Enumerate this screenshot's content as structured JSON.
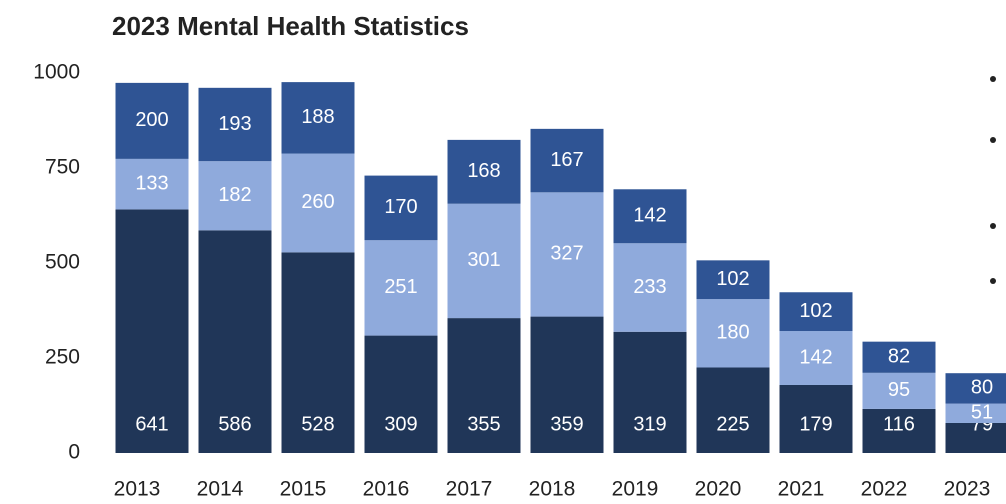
{
  "chart_data": {
    "type": "stacked_bar",
    "title": "2023 Mental Health Statistics",
    "categories": [
      "2013",
      "2014",
      "2015",
      "2016",
      "2017",
      "2018",
      "2019",
      "2020",
      "2021",
      "2022",
      "2023"
    ],
    "series": [
      {
        "color": "#203658",
        "values": [
          641,
          586,
          528,
          309,
          355,
          359,
          319,
          225,
          179,
          116,
          79
        ]
      },
      {
        "color": "#8faadc",
        "values": [
          133,
          182,
          260,
          251,
          301,
          327,
          233,
          180,
          142,
          95,
          51
        ]
      },
      {
        "color": "#2f5494",
        "values": [
          200,
          193,
          188,
          170,
          168,
          167,
          142,
          102,
          102,
          82,
          80
        ]
      }
    ],
    "ylim": [
      0,
      1000
    ],
    "yticks": [
      0,
      250,
      500,
      750,
      1000
    ],
    "grid": false
  }
}
